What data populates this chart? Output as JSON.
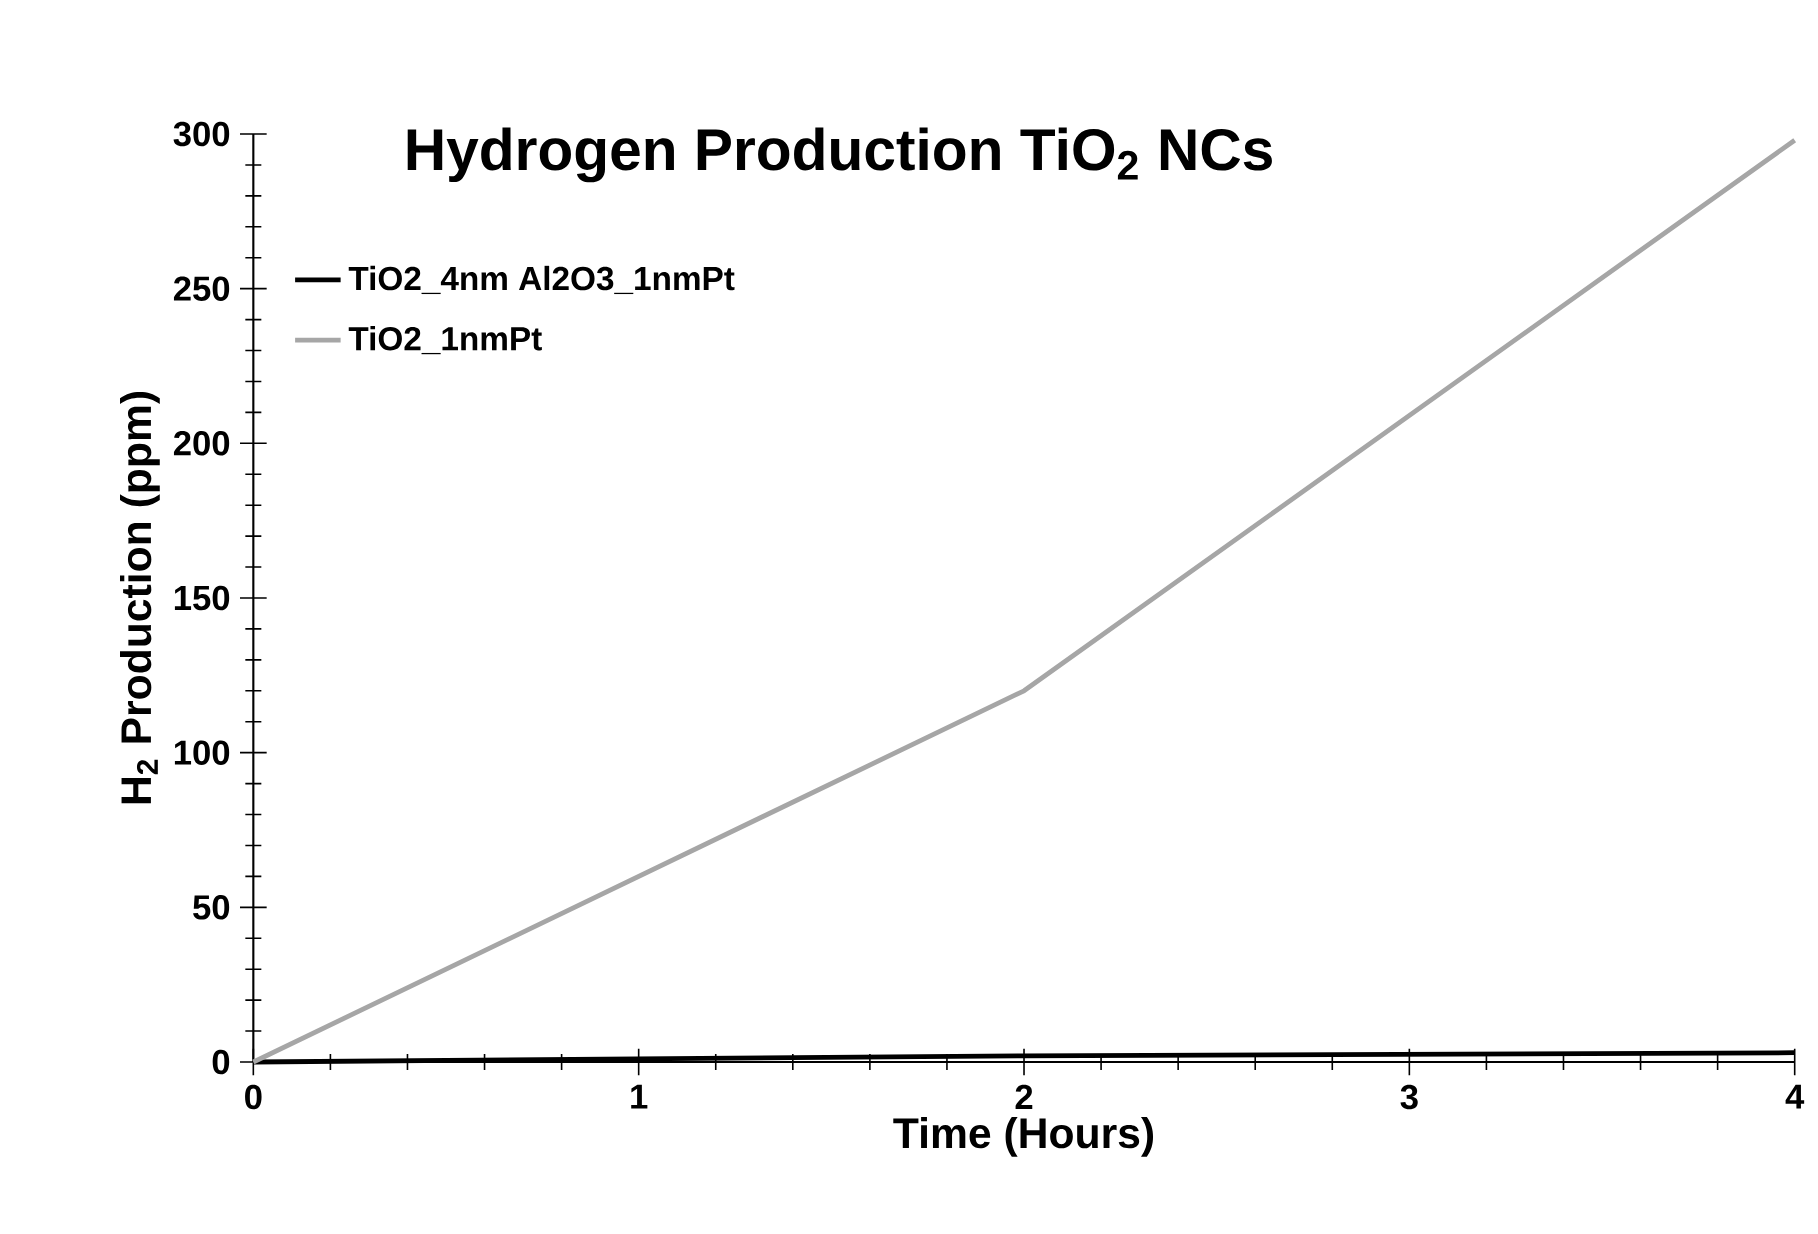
{
  "chart_data": {
    "type": "line",
    "title": "Hydrogen Production TiO$_{2}$ NCs",
    "xlabel": "Time (Hours)",
    "ylabel": "H$_{2}$ Production (ppm)",
    "x": [
      0,
      2,
      4
    ],
    "series": [
      {
        "name": "TiO2_4nm Al2O3_1nmPt",
        "color": "#000000",
        "values": [
          0,
          2,
          3
        ]
      },
      {
        "name": "TiO2_1nmPt",
        "color": "#a6a6a6",
        "values": [
          0,
          120,
          298
        ]
      }
    ],
    "xlim": [
      0,
      4
    ],
    "ylim": [
      0,
      300
    ],
    "xticks": [
      0,
      1,
      2,
      3,
      4
    ],
    "yticks": [
      0,
      50,
      100,
      150,
      200,
      250,
      300
    ],
    "grid": false,
    "legend": "top left",
    "marker": "none",
    "line_style": "solid"
  }
}
